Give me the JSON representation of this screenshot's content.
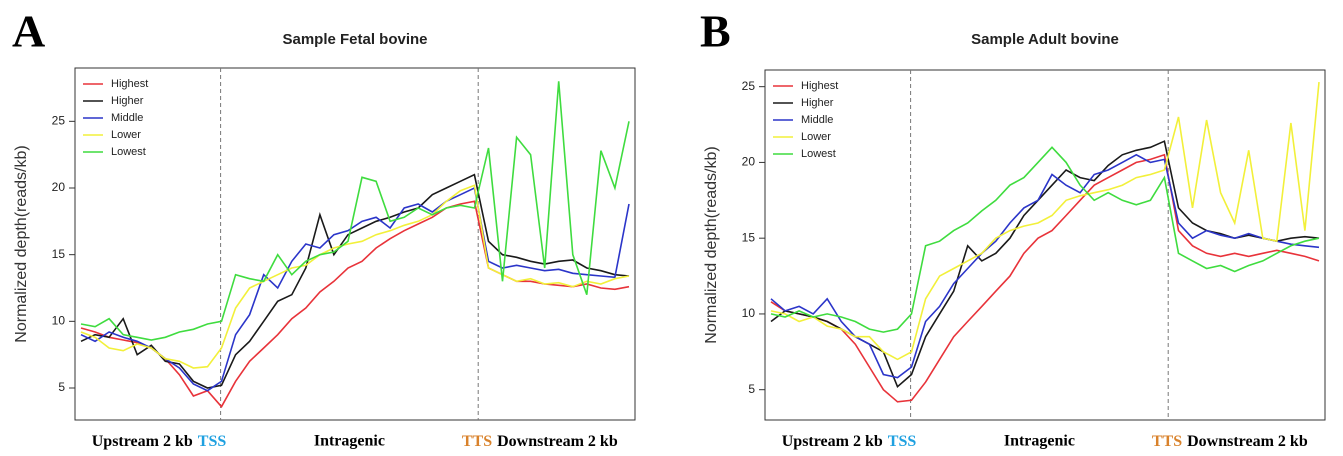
{
  "chart_data": [
    {
      "type": "line",
      "panel_label": "A",
      "title": "Sample Fetal bovine",
      "ylabel": "Normalized depth(reads/kb)",
      "x_labels": {
        "upstream": "Upstream 2 kb",
        "tss": "TSS",
        "intragenic": "Intragenic",
        "tts": "TTS",
        "downstream": "Downstream 2 kb"
      },
      "ylim": [
        2.6,
        29
      ],
      "yticks": [
        5,
        10,
        15,
        20,
        25
      ],
      "series": [
        {
          "name": "Highest",
          "color": "#e8333a",
          "values": [
            9.5,
            9.2,
            8.8,
            8.6,
            8.4,
            8.0,
            7.2,
            6.0,
            4.4,
            4.8,
            3.6,
            5.5,
            7.0,
            8.0,
            9.0,
            10.2,
            11.0,
            12.2,
            13.0,
            14.0,
            14.5,
            15.5,
            16.2,
            16.8,
            17.3,
            17.8,
            18.5,
            18.8,
            19.0,
            14.0,
            13.5,
            13.0,
            13.0,
            12.8,
            12.7,
            12.6,
            12.8,
            12.5,
            12.4,
            12.6
          ]
        },
        {
          "name": "Higher",
          "color": "#1a1a1a",
          "values": [
            8.5,
            9.0,
            8.8,
            10.2,
            7.5,
            8.2,
            7.0,
            6.8,
            5.5,
            5.0,
            5.2,
            7.5,
            8.5,
            10.0,
            11.5,
            12.0,
            14.0,
            18.0,
            15.0,
            16.5,
            17.0,
            17.5,
            17.8,
            18.2,
            18.5,
            19.5,
            20.0,
            20.5,
            21.0,
            16.0,
            15.0,
            14.8,
            14.5,
            14.3,
            14.5,
            14.6,
            14.0,
            13.8,
            13.5,
            13.4
          ]
        },
        {
          "name": "Middle",
          "color": "#2b35c9",
          "values": [
            9.0,
            8.5,
            9.2,
            8.8,
            8.5,
            8.0,
            7.2,
            6.5,
            5.3,
            4.8,
            5.5,
            9.0,
            10.5,
            13.5,
            12.5,
            14.5,
            15.8,
            15.5,
            16.5,
            16.8,
            17.5,
            17.8,
            17.0,
            18.5,
            18.8,
            18.2,
            19.0,
            19.5,
            20.0,
            14.5,
            14.0,
            14.2,
            14.0,
            13.8,
            13.9,
            13.6,
            13.5,
            13.4,
            13.3,
            18.8
          ]
        },
        {
          "name": "Lower",
          "color": "#f2f03a",
          "values": [
            9.2,
            8.8,
            8.0,
            7.8,
            8.3,
            8.0,
            7.2,
            7.0,
            6.5,
            6.6,
            8.0,
            11.0,
            12.5,
            13.0,
            13.5,
            14.0,
            14.2,
            15.0,
            15.5,
            15.8,
            16.0,
            16.5,
            16.8,
            17.2,
            17.5,
            18.0,
            19.0,
            19.8,
            20.2,
            14.0,
            13.5,
            13.0,
            13.2,
            12.8,
            12.9,
            12.6,
            13.0,
            12.8,
            13.2,
            13.4
          ]
        },
        {
          "name": "Lowest",
          "color": "#3fdc3f",
          "values": [
            9.8,
            9.6,
            10.2,
            9.0,
            8.8,
            8.6,
            8.8,
            9.2,
            9.4,
            9.8,
            10.0,
            13.5,
            13.2,
            13.0,
            15.0,
            13.5,
            14.5,
            15.0,
            15.2,
            16.0,
            20.8,
            20.5,
            17.5,
            17.8,
            18.5,
            18.0,
            18.5,
            18.7,
            18.5,
            23.0,
            13.0,
            23.8,
            22.5,
            14.0,
            28.0,
            15.0,
            12.0,
            22.8,
            20.0,
            25.0
          ]
        }
      ]
    },
    {
      "type": "line",
      "panel_label": "B",
      "title": "Sample Adult bovine",
      "ylabel": "Normalized depth(reads/kb)",
      "x_labels": {
        "upstream": "Upstream 2 kb",
        "tss": "TSS",
        "intragenic": "Intragenic",
        "tts": "TTS",
        "downstream": "Downstream 2 kb"
      },
      "ylim": [
        3,
        26.1
      ],
      "yticks": [
        5,
        10,
        15,
        20,
        25
      ],
      "series": [
        {
          "name": "Highest",
          "color": "#e8333a",
          "values": [
            10.8,
            10.2,
            10.0,
            9.8,
            9.5,
            9.0,
            8.0,
            6.5,
            5.0,
            4.2,
            4.3,
            5.5,
            7.0,
            8.5,
            9.5,
            10.5,
            11.5,
            12.5,
            14.0,
            15.0,
            15.5,
            16.5,
            17.5,
            18.5,
            19.0,
            19.5,
            20.0,
            20.2,
            20.5,
            15.5,
            14.5,
            14.0,
            13.8,
            14.0,
            13.8,
            14.0,
            14.2,
            14.0,
            13.8,
            13.5
          ]
        },
        {
          "name": "Higher",
          "color": "#1a1a1a",
          "values": [
            9.5,
            10.2,
            10.0,
            9.8,
            9.5,
            9.0,
            8.5,
            8.0,
            7.5,
            5.2,
            6.0,
            8.5,
            10.0,
            11.5,
            14.5,
            13.5,
            14.0,
            15.0,
            16.5,
            17.5,
            18.5,
            19.5,
            19.0,
            18.8,
            19.8,
            20.5,
            20.8,
            21.0,
            21.4,
            17.0,
            16.0,
            15.5,
            15.3,
            15.0,
            15.2,
            15.0,
            14.8,
            15.0,
            15.1,
            15.0
          ]
        },
        {
          "name": "Middle",
          "color": "#2b35c9",
          "values": [
            11.0,
            10.2,
            10.5,
            10.0,
            11.0,
            9.5,
            8.5,
            8.0,
            6.0,
            5.8,
            6.5,
            9.5,
            10.5,
            12.0,
            13.0,
            14.0,
            14.8,
            16.0,
            17.0,
            17.5,
            19.2,
            18.5,
            18.0,
            19.2,
            19.5,
            20.0,
            20.5,
            20.0,
            20.2,
            16.0,
            15.0,
            15.5,
            15.2,
            15.0,
            15.3,
            15.0,
            14.8,
            14.6,
            14.5,
            14.4
          ]
        },
        {
          "name": "Lower",
          "color": "#f2f03a",
          "values": [
            10.2,
            10.0,
            9.5,
            9.8,
            9.2,
            9.0,
            8.5,
            8.5,
            7.5,
            7.0,
            7.5,
            11.0,
            12.5,
            13.0,
            13.5,
            14.0,
            15.0,
            15.5,
            15.8,
            16.0,
            16.5,
            17.5,
            17.8,
            18.0,
            18.2,
            18.5,
            19.0,
            19.2,
            19.5,
            23.0,
            17.0,
            22.8,
            18.0,
            16.0,
            20.8,
            15.0,
            14.8,
            22.6,
            15.5,
            25.3
          ]
        },
        {
          "name": "Lowest",
          "color": "#3fdc3f",
          "values": [
            10.0,
            9.8,
            10.2,
            9.8,
            10.0,
            9.8,
            9.5,
            9.0,
            8.8,
            9.0,
            10.0,
            14.5,
            14.8,
            15.5,
            16.0,
            16.8,
            17.5,
            18.5,
            19.0,
            20.0,
            21.0,
            20.0,
            18.5,
            17.5,
            18.0,
            17.5,
            17.2,
            17.5,
            19.0,
            14.0,
            13.5,
            13.0,
            13.2,
            12.8,
            13.2,
            13.5,
            14.0,
            14.5,
            14.8,
            15.0
          ]
        }
      ]
    }
  ]
}
